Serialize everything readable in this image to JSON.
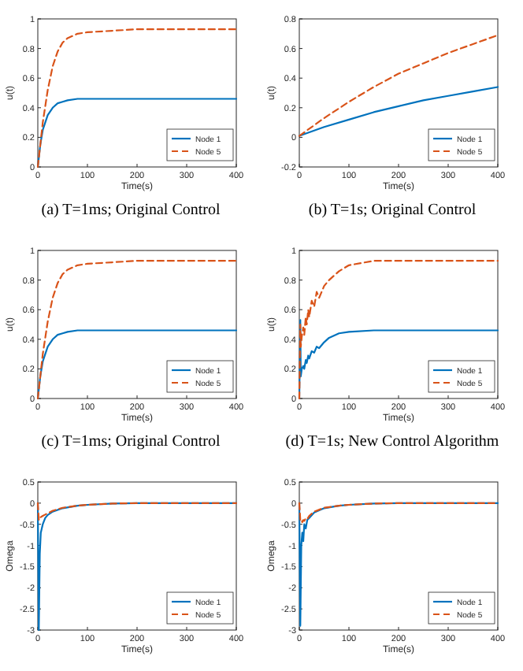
{
  "chart_data": [
    {
      "type": "line",
      "title": "(a)  T=1ms; Original Control",
      "xlabel": "Time(s)",
      "ylabel": "u(t)",
      "xlim": [
        0,
        400
      ],
      "xticks": [
        0,
        100,
        200,
        300,
        400
      ],
      "ylim": [
        0,
        1
      ],
      "yticks": [
        0,
        0.2,
        0.4,
        0.6,
        0.8,
        1
      ],
      "legend": "bottom right",
      "grid": false,
      "series": [
        {
          "name": "Node 1",
          "color": "#0072bd",
          "line_style": "solid",
          "x": [
            0,
            5,
            10,
            20,
            30,
            40,
            50,
            60,
            80,
            100,
            150,
            200,
            300,
            400
          ],
          "values": [
            0,
            0.15,
            0.25,
            0.35,
            0.4,
            0.43,
            0.44,
            0.45,
            0.46,
            0.46,
            0.46,
            0.46,
            0.46,
            0.46
          ]
        },
        {
          "name": "Node 5",
          "color": "#d95319",
          "line_style": "dashed",
          "x": [
            0,
            5,
            10,
            20,
            30,
            40,
            50,
            60,
            80,
            100,
            150,
            200,
            300,
            400
          ],
          "values": [
            0,
            0.15,
            0.3,
            0.52,
            0.68,
            0.78,
            0.84,
            0.87,
            0.9,
            0.91,
            0.92,
            0.93,
            0.93,
            0.93
          ]
        }
      ]
    },
    {
      "type": "line",
      "title": "(b)  T=1s; Original Control",
      "xlabel": "Time(s)",
      "ylabel": "u(t)",
      "xlim": [
        0,
        400
      ],
      "xticks": [
        0,
        100,
        200,
        300,
        400
      ],
      "ylim": [
        -0.2,
        0.8
      ],
      "yticks": [
        -0.2,
        0,
        0.2,
        0.4,
        0.6,
        0.8
      ],
      "legend": "bottom right",
      "grid": false,
      "series": [
        {
          "name": "Node 1",
          "color": "#0072bd",
          "line_style": "solid",
          "x": [
            0,
            50,
            100,
            150,
            200,
            250,
            300,
            350,
            400
          ],
          "values": [
            0.01,
            0.07,
            0.12,
            0.17,
            0.21,
            0.25,
            0.28,
            0.31,
            0.34
          ]
        },
        {
          "name": "Node 5",
          "color": "#d95319",
          "line_style": "dashed",
          "x": [
            0,
            50,
            100,
            150,
            200,
            250,
            300,
            350,
            400
          ],
          "values": [
            0.01,
            0.13,
            0.24,
            0.34,
            0.43,
            0.5,
            0.57,
            0.63,
            0.69
          ]
        }
      ]
    },
    {
      "type": "line",
      "title": "(c)  T=1ms; Original Control",
      "xlabel": "Time(s)",
      "ylabel": "u(t)",
      "xlim": [
        0,
        400
      ],
      "xticks": [
        0,
        100,
        200,
        300,
        400
      ],
      "ylim": [
        0,
        1
      ],
      "yticks": [
        0,
        0.2,
        0.4,
        0.6,
        0.8,
        1
      ],
      "legend": "bottom right",
      "grid": false,
      "series": [
        {
          "name": "Node 1",
          "color": "#0072bd",
          "line_style": "solid",
          "x": [
            0,
            5,
            10,
            20,
            30,
            40,
            50,
            60,
            80,
            100,
            150,
            200,
            300,
            400
          ],
          "values": [
            0,
            0.15,
            0.25,
            0.35,
            0.4,
            0.43,
            0.44,
            0.45,
            0.46,
            0.46,
            0.46,
            0.46,
            0.46,
            0.46
          ]
        },
        {
          "name": "Node 5",
          "color": "#d95319",
          "line_style": "dashed",
          "x": [
            0,
            5,
            10,
            20,
            30,
            40,
            50,
            60,
            80,
            100,
            150,
            200,
            300,
            400
          ],
          "values": [
            0,
            0.15,
            0.3,
            0.52,
            0.68,
            0.78,
            0.84,
            0.87,
            0.9,
            0.91,
            0.92,
            0.93,
            0.93,
            0.93
          ]
        }
      ]
    },
    {
      "type": "line",
      "title": "(d)  T=1s; New Control Algorithm",
      "xlabel": "Time(s)",
      "ylabel": "u(t)",
      "xlim": [
        0,
        400
      ],
      "xticks": [
        0,
        100,
        200,
        300,
        400
      ],
      "ylim": [
        0,
        1
      ],
      "yticks": [
        0,
        0.2,
        0.4,
        0.6,
        0.8,
        1
      ],
      "legend": "bottom right",
      "grid": false,
      "series": [
        {
          "name": "Node 1",
          "color": "#0072bd",
          "line_style": "solid",
          "x": [
            0,
            2,
            3,
            5,
            8,
            10,
            13,
            15,
            18,
            20,
            25,
            30,
            35,
            40,
            50,
            60,
            80,
            100,
            150,
            200,
            400
          ],
          "values": [
            0,
            0.53,
            0.15,
            0.2,
            0.22,
            0.2,
            0.26,
            0.24,
            0.29,
            0.27,
            0.32,
            0.31,
            0.35,
            0.34,
            0.38,
            0.41,
            0.44,
            0.45,
            0.46,
            0.46,
            0.46
          ]
        },
        {
          "name": "Node 5",
          "color": "#d95319",
          "line_style": "dashed",
          "x": [
            0,
            2,
            3,
            5,
            8,
            10,
            13,
            15,
            18,
            20,
            25,
            30,
            35,
            40,
            50,
            60,
            80,
            100,
            150,
            200,
            400
          ],
          "values": [
            0,
            0.5,
            0.35,
            0.42,
            0.48,
            0.43,
            0.55,
            0.5,
            0.6,
            0.55,
            0.66,
            0.62,
            0.72,
            0.68,
            0.76,
            0.8,
            0.86,
            0.9,
            0.93,
            0.93,
            0.93
          ]
        }
      ]
    },
    {
      "type": "line",
      "xlabel": "Time(s)",
      "ylabel": "Omega",
      "xlim": [
        0,
        400
      ],
      "xticks": [
        0,
        100,
        200,
        300,
        400
      ],
      "ylim": [
        -3,
        0.5
      ],
      "yticks": [
        -3,
        -2.5,
        -2,
        -1.5,
        -1,
        -0.5,
        0,
        0.5
      ],
      "legend": "bottom right",
      "grid": false,
      "series": [
        {
          "name": "Node 1",
          "color": "#0072bd",
          "line_style": "solid",
          "x": [
            0,
            1,
            2,
            4,
            6,
            10,
            15,
            20,
            30,
            50,
            80,
            100,
            150,
            200,
            400
          ],
          "values": [
            0,
            -1.5,
            -3,
            -1.2,
            -0.7,
            -0.5,
            -0.35,
            -0.28,
            -0.2,
            -0.12,
            -0.06,
            -0.04,
            -0.01,
            0,
            0
          ]
        },
        {
          "name": "Node 5",
          "color": "#d95319",
          "line_style": "dashed",
          "x": [
            0,
            1,
            2,
            4,
            6,
            10,
            15,
            20,
            30,
            50,
            80,
            100,
            150,
            200,
            400
          ],
          "values": [
            0,
            -0.2,
            -0.4,
            -0.35,
            -0.33,
            -0.3,
            -0.27,
            -0.24,
            -0.18,
            -0.11,
            -0.06,
            -0.04,
            -0.01,
            0,
            0
          ]
        }
      ]
    },
    {
      "type": "line",
      "xlabel": "Time(s)",
      "ylabel": "Omega",
      "xlim": [
        0,
        400
      ],
      "xticks": [
        0,
        100,
        200,
        300,
        400
      ],
      "ylim": [
        -3,
        0.5
      ],
      "yticks": [
        -3,
        -2.5,
        -2,
        -1.5,
        -1,
        -0.5,
        0,
        0.5
      ],
      "legend": "bottom right",
      "grid": false,
      "series": [
        {
          "name": "Node 1",
          "color": "#0072bd",
          "line_style": "solid",
          "x": [
            0,
            1,
            2,
            4,
            6,
            8,
            10,
            13,
            16,
            20,
            30,
            50,
            80,
            100,
            150,
            200,
            400
          ],
          "values": [
            0,
            -1.5,
            -2.9,
            -1.0,
            -0.7,
            -0.9,
            -0.5,
            -0.6,
            -0.4,
            -0.35,
            -0.22,
            -0.12,
            -0.06,
            -0.04,
            -0.01,
            0,
            0
          ]
        },
        {
          "name": "Node 5",
          "color": "#d95319",
          "line_style": "dashed",
          "x": [
            0,
            1,
            2,
            4,
            6,
            8,
            10,
            13,
            16,
            20,
            30,
            50,
            80,
            100,
            150,
            200,
            400
          ],
          "values": [
            0,
            -0.2,
            -0.4,
            -0.38,
            -0.45,
            -0.4,
            -0.42,
            -0.36,
            -0.38,
            -0.3,
            -0.2,
            -0.11,
            -0.06,
            -0.04,
            -0.01,
            0,
            0
          ]
        }
      ]
    }
  ]
}
